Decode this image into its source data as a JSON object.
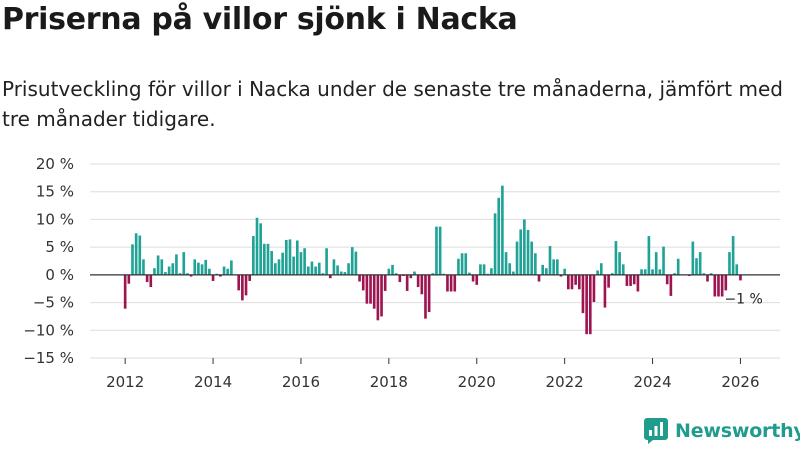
{
  "header": {
    "title": "Priserna på villor sjönk i Nacka",
    "subtitle": "Prisutveckling för villor i Nacka under de senaste tre månaderna, jämfört med tre månader tidigare."
  },
  "colors": {
    "positive": "#1fa396",
    "negative": "#9e1451",
    "grid": "#dddddd",
    "axis": "#333333",
    "brand": "#1f9c8c"
  },
  "brand": {
    "name": "Newsworthy",
    "icon": "bar-chart-logo-icon"
  },
  "chart_data": {
    "type": "bar",
    "title": "Priserna på villor sjönk i Nacka",
    "subtitle": "Prisutveckling för villor i Nacka under de senaste tre månaderna, jämfört med tre månader tidigare.",
    "xlabel": "",
    "ylabel": "",
    "ylim": [
      -15,
      20
    ],
    "yticks": [
      -15,
      -10,
      -5,
      0,
      5,
      10,
      15,
      20
    ],
    "ytick_labels": [
      "−15 %",
      "−10 %",
      "−5 %",
      "0 %",
      "5 %",
      "10 %",
      "15 %",
      "20 %"
    ],
    "xlim": [
      2011.2,
      2026.9
    ],
    "xticks": [
      2012,
      2014,
      2016,
      2018,
      2020,
      2022,
      2024,
      2026
    ],
    "xtick_labels": [
      "2012",
      "2014",
      "2016",
      "2018",
      "2020",
      "2022",
      "2024",
      "2026"
    ],
    "grid": true,
    "start": [
      2012,
      1
    ],
    "frequency": "monthly",
    "values": [
      -6.1,
      -1.6,
      5.5,
      7.5,
      7.1,
      2.8,
      -1.3,
      -2.2,
      1.2,
      3.5,
      2.8,
      0.5,
      1.5,
      2.1,
      3.7,
      0.3,
      4.1,
      0.3,
      -0.3,
      2.8,
      2.2,
      1.9,
      2.7,
      1.1,
      -1.1,
      0.2,
      -0.3,
      1.5,
      1.1,
      2.6,
      0,
      -2.8,
      -4.6,
      -3.7,
      -1.1,
      7,
      10.3,
      9.3,
      5.6,
      5.6,
      4.3,
      2.1,
      2.8,
      4,
      6.3,
      6.4,
      3.3,
      6.2,
      4.1,
      4.8,
      1.5,
      2.4,
      1.5,
      2.2,
      0.3,
      4.8,
      -0.6,
      2.8,
      1.7,
      0.6,
      0.5,
      2.1,
      5,
      4.2,
      -1.2,
      -2.8,
      -5.2,
      -5.2,
      -6.1,
      -8.2,
      -7.5,
      -2.9,
      1.1,
      1.8,
      0.3,
      -1.3,
      -0.2,
      -2.9,
      -0.6,
      0.6,
      -2.2,
      -3.5,
      -7.9,
      -6.7,
      0.3,
      8.7,
      8.7,
      0.2,
      -3,
      -3,
      -3,
      2.9,
      3.9,
      3.9,
      0.4,
      -1.2,
      -1.8,
      1.9,
      1.9,
      0.2,
      1.2,
      11.1,
      13.9,
      16.1,
      4.1,
      2.1,
      0.6,
      6,
      8.2,
      10,
      8.1,
      6,
      3.9,
      -1.2,
      1.8,
      1.2,
      5.2,
      2.8,
      2.8,
      -0.3,
      1.1,
      -2.6,
      -2.6,
      -1.8,
      -2.6,
      -6.9,
      -10.7,
      -10.7,
      -4.9,
      0.8,
      2.1,
      -5.9,
      -2.3,
      0.3,
      6.1,
      4.1,
      1.9,
      -2,
      -2,
      -1.7,
      -3,
      1,
      1,
      7,
      1,
      4.1,
      1,
      5.1,
      -1.7,
      -3.8,
      0.3,
      2.9,
      0,
      0,
      -0.2,
      6,
      3,
      4.1,
      0.3,
      -1.2,
      0.3,
      -3.9,
      -3.9,
      -3.9,
      -2.8,
      4.1,
      7,
      1.9,
      -1
    ]
  },
  "annotation": {
    "label": "−1 %"
  }
}
